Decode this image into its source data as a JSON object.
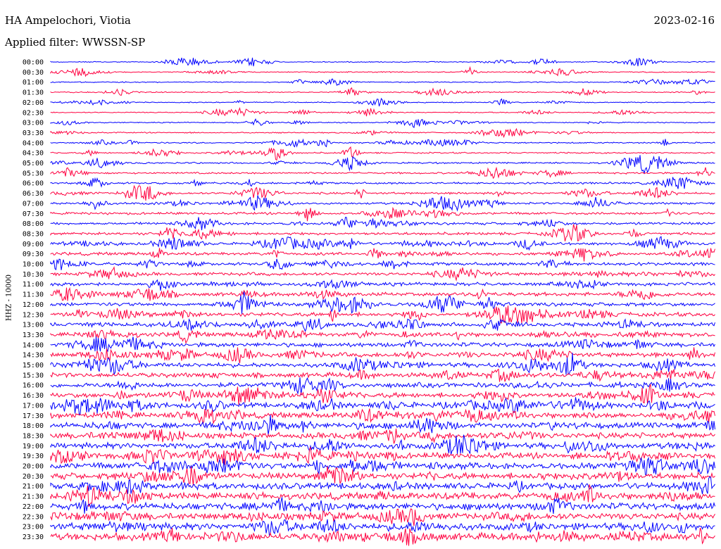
{
  "header": {
    "station": "HA Ampelochori, Viotia",
    "date": "2023-02-16",
    "filter": "Applied filter: WWSSN-SP"
  },
  "chart_data": {
    "type": "line",
    "title": "HA Ampelochori, Viotia",
    "ylabel": "HHZ - 10000",
    "xlabel": "",
    "rows": [
      "00:00",
      "00:30",
      "01:00",
      "01:30",
      "02:00",
      "02:30",
      "03:00",
      "03:30",
      "04:00",
      "04:30",
      "05:00",
      "05:30",
      "06:00",
      "06:30",
      "07:00",
      "07:30",
      "08:00",
      "08:30",
      "09:00",
      "09:30",
      "10:00",
      "10:30",
      "11:00",
      "11:30",
      "12:00",
      "12:30",
      "13:00",
      "13:30",
      "14:00",
      "14:30",
      "15:00",
      "15:30",
      "16:00",
      "16:30",
      "17:00",
      "17:30",
      "18:00",
      "18:30",
      "19:00",
      "19:30",
      "20:00",
      "20:30",
      "21:00",
      "21:30",
      "22:00",
      "22:30",
      "23:00",
      "23:30"
    ],
    "colors": [
      "#0000ff",
      "#ff0040"
    ],
    "grid": false,
    "legend": "none"
  }
}
